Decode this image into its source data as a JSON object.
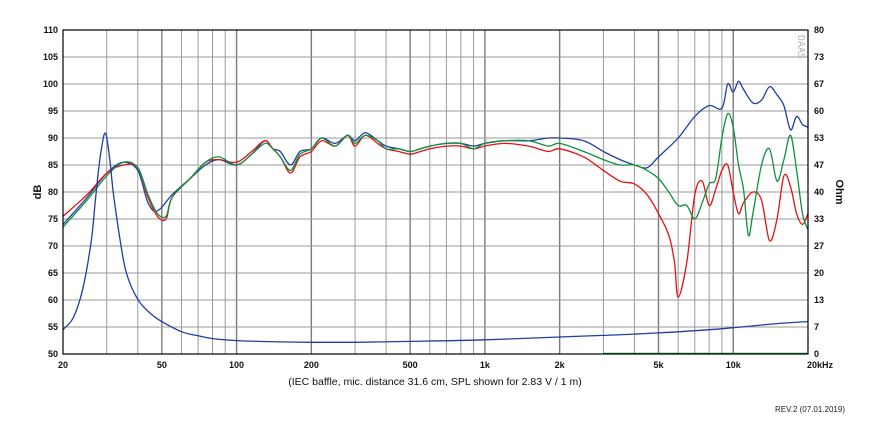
{
  "chart_data": {
    "type": "line",
    "x_scale": "log",
    "grid": true,
    "xlim": [
      20,
      20000
    ],
    "ylim": [
      50,
      110
    ],
    "y2lim": [
      0,
      80
    ],
    "ylabel": "dB",
    "y2label": "Ohm",
    "x_ticks": [
      {
        "value": 20,
        "label": "20"
      },
      {
        "value": 50,
        "label": "50"
      },
      {
        "value": 100,
        "label": "100"
      },
      {
        "value": 200,
        "label": "200"
      },
      {
        "value": 500,
        "label": "500"
      },
      {
        "value": 1000,
        "label": "1k"
      },
      {
        "value": 2000,
        "label": "2k"
      },
      {
        "value": 5000,
        "label": "5k"
      },
      {
        "value": 10000,
        "label": "10k"
      },
      {
        "value": 20000,
        "label": "20kHz"
      }
    ],
    "y_ticks": [
      {
        "value": 110,
        "label": "110"
      },
      {
        "value": 105,
        "label": "105"
      },
      {
        "value": 100,
        "label": "100"
      },
      {
        "value": 95,
        "label": "95"
      },
      {
        "value": 90,
        "label": "90"
      },
      {
        "value": 85,
        "label": "85"
      },
      {
        "value": 80,
        "label": "80"
      },
      {
        "value": 75,
        "label": "75"
      },
      {
        "value": 70,
        "label": "70"
      },
      {
        "value": 65,
        "label": "65"
      },
      {
        "value": 60,
        "label": "60"
      },
      {
        "value": 55,
        "label": "55"
      },
      {
        "value": 50,
        "label": "50"
      }
    ],
    "y2_ticks": [
      {
        "value": 80,
        "label": "80"
      },
      {
        "value": 73.3,
        "label": "73"
      },
      {
        "value": 66.7,
        "label": "67"
      },
      {
        "value": 60,
        "label": "60"
      },
      {
        "value": 53.3,
        "label": "53"
      },
      {
        "value": 46.7,
        "label": "47"
      },
      {
        "value": 40,
        "label": "40"
      },
      {
        "value": 33.3,
        "label": "33"
      },
      {
        "value": 26.7,
        "label": "27"
      },
      {
        "value": 20,
        "label": "20"
      },
      {
        "value": 13.3,
        "label": "13"
      },
      {
        "value": 6.7,
        "label": "7"
      },
      {
        "value": 0,
        "label": "0"
      }
    ],
    "caption": "(IEC baffle, mic. distance 31.6 cm, SPL shown for 2.83 V / 1 m)",
    "watermark": "DAAS",
    "revision": "REV.2 (07.01.2019)",
    "series": [
      {
        "color": "#1f3fa0",
        "axis": "left",
        "points": [
          [
            20,
            74
          ],
          [
            25,
            79
          ],
          [
            30,
            83.5
          ],
          [
            35,
            85.5
          ],
          [
            40,
            84
          ],
          [
            44,
            78
          ],
          [
            48,
            76.5
          ],
          [
            55,
            79.5
          ],
          [
            65,
            82.5
          ],
          [
            75,
            85
          ],
          [
            85,
            86
          ],
          [
            100,
            85
          ],
          [
            115,
            87
          ],
          [
            130,
            89.5
          ],
          [
            140,
            88
          ],
          [
            150,
            87.5
          ],
          [
            165,
            85
          ],
          [
            180,
            87.5
          ],
          [
            200,
            88
          ],
          [
            220,
            90
          ],
          [
            250,
            89
          ],
          [
            280,
            90.5
          ],
          [
            300,
            89.5
          ],
          [
            330,
            91
          ],
          [
            370,
            89.5
          ],
          [
            400,
            88.5
          ],
          [
            450,
            88
          ],
          [
            500,
            87.5
          ],
          [
            550,
            88
          ],
          [
            600,
            88.5
          ],
          [
            700,
            89
          ],
          [
            800,
            89
          ],
          [
            900,
            88.5
          ],
          [
            1000,
            89
          ],
          [
            1200,
            89.5
          ],
          [
            1500,
            89.5
          ],
          [
            1800,
            90
          ],
          [
            2000,
            90
          ],
          [
            2500,
            89.5
          ],
          [
            3000,
            87.5
          ],
          [
            3500,
            86
          ],
          [
            4000,
            85
          ],
          [
            4500,
            84.5
          ],
          [
            5000,
            86.5
          ],
          [
            6000,
            90
          ],
          [
            7000,
            94
          ],
          [
            8000,
            96
          ],
          [
            9000,
            95.5
          ],
          [
            9500,
            100
          ],
          [
            10000,
            98.5
          ],
          [
            10500,
            100.5
          ],
          [
            11000,
            99
          ],
          [
            12000,
            96.5
          ],
          [
            13000,
            97
          ],
          [
            14000,
            99.5
          ],
          [
            15000,
            98
          ],
          [
            16000,
            96
          ],
          [
            17000,
            91.5
          ],
          [
            18000,
            94
          ],
          [
            19000,
            92.5
          ],
          [
            20000,
            92
          ]
        ]
      },
      {
        "color": "#e81010",
        "axis": "left",
        "points": [
          [
            20,
            75.5
          ],
          [
            25,
            79.5
          ],
          [
            30,
            83.5
          ],
          [
            35,
            85
          ],
          [
            40,
            84.5
          ],
          [
            44,
            79
          ],
          [
            48,
            75.5
          ],
          [
            52,
            75
          ],
          [
            55,
            79
          ],
          [
            65,
            82.5
          ],
          [
            75,
            85.5
          ],
          [
            85,
            86
          ],
          [
            100,
            85.5
          ],
          [
            115,
            87.5
          ],
          [
            130,
            89.5
          ],
          [
            140,
            88
          ],
          [
            150,
            86.5
          ],
          [
            165,
            83.5
          ],
          [
            180,
            86.5
          ],
          [
            200,
            87.5
          ],
          [
            220,
            89.5
          ],
          [
            250,
            88.5
          ],
          [
            280,
            90.5
          ],
          [
            300,
            88.5
          ],
          [
            330,
            90.5
          ],
          [
            370,
            89
          ],
          [
            400,
            88
          ],
          [
            450,
            87.5
          ],
          [
            500,
            87
          ],
          [
            550,
            87.5
          ],
          [
            600,
            88
          ],
          [
            700,
            88.5
          ],
          [
            800,
            88.5
          ],
          [
            900,
            88
          ],
          [
            1000,
            88.5
          ],
          [
            1200,
            89
          ],
          [
            1500,
            88.5
          ],
          [
            1800,
            87.5
          ],
          [
            2000,
            88
          ],
          [
            2500,
            86.5
          ],
          [
            3000,
            84
          ],
          [
            3500,
            82
          ],
          [
            4000,
            81.5
          ],
          [
            4500,
            79.5
          ],
          [
            5000,
            76
          ],
          [
            5500,
            72
          ],
          [
            5800,
            67
          ],
          [
            6000,
            60.5
          ],
          [
            6500,
            67
          ],
          [
            7000,
            79.5
          ],
          [
            7500,
            82
          ],
          [
            8000,
            77.5
          ],
          [
            8500,
            80.5
          ],
          [
            9000,
            84
          ],
          [
            9500,
            85
          ],
          [
            10000,
            80
          ],
          [
            10500,
            76
          ],
          [
            11000,
            78
          ],
          [
            12000,
            80
          ],
          [
            13000,
            78.5
          ],
          [
            14000,
            71
          ],
          [
            15000,
            75
          ],
          [
            16000,
            83
          ],
          [
            17000,
            81
          ],
          [
            18000,
            76
          ],
          [
            19000,
            74
          ],
          [
            20000,
            76
          ]
        ]
      },
      {
        "color": "#109040",
        "axis": "left",
        "points": [
          [
            20,
            73.5
          ],
          [
            25,
            78.5
          ],
          [
            30,
            83
          ],
          [
            35,
            85.5
          ],
          [
            40,
            84.5
          ],
          [
            44,
            79.5
          ],
          [
            48,
            76
          ],
          [
            52,
            75.5
          ],
          [
            55,
            79
          ],
          [
            65,
            82.5
          ],
          [
            75,
            85.5
          ],
          [
            85,
            86.5
          ],
          [
            100,
            85
          ],
          [
            115,
            87
          ],
          [
            130,
            89
          ],
          [
            140,
            88
          ],
          [
            150,
            86.5
          ],
          [
            165,
            84
          ],
          [
            180,
            87
          ],
          [
            200,
            88
          ],
          [
            220,
            90
          ],
          [
            250,
            88.5
          ],
          [
            280,
            90.5
          ],
          [
            300,
            89
          ],
          [
            330,
            90.5
          ],
          [
            370,
            89.5
          ],
          [
            400,
            88
          ],
          [
            450,
            88
          ],
          [
            500,
            87.5
          ],
          [
            550,
            88
          ],
          [
            600,
            88.5
          ],
          [
            700,
            89
          ],
          [
            800,
            89
          ],
          [
            900,
            88
          ],
          [
            1000,
            89
          ],
          [
            1200,
            89.5
          ],
          [
            1500,
            89.5
          ],
          [
            1800,
            88.5
          ],
          [
            2000,
            89
          ],
          [
            2500,
            87.5
          ],
          [
            3000,
            86
          ],
          [
            3500,
            85
          ],
          [
            4000,
            85
          ],
          [
            4500,
            84
          ],
          [
            5000,
            82.5
          ],
          [
            5500,
            80
          ],
          [
            6000,
            77.5
          ],
          [
            6500,
            77.5
          ],
          [
            7000,
            75
          ],
          [
            7500,
            78
          ],
          [
            8000,
            81.5
          ],
          [
            8500,
            82.5
          ],
          [
            9000,
            90
          ],
          [
            9500,
            94.5
          ],
          [
            10000,
            92
          ],
          [
            10500,
            85
          ],
          [
            11000,
            80.5
          ],
          [
            11500,
            72
          ],
          [
            12000,
            76
          ],
          [
            13000,
            85
          ],
          [
            14000,
            88
          ],
          [
            15000,
            82
          ],
          [
            16000,
            86
          ],
          [
            17000,
            90.5
          ],
          [
            18000,
            84
          ],
          [
            19000,
            76
          ],
          [
            20000,
            73
          ]
        ]
      },
      {
        "color": "#1f3fa0",
        "axis": "right",
        "points": [
          [
            20,
            6
          ],
          [
            22,
            9
          ],
          [
            24,
            16
          ],
          [
            26,
            28
          ],
          [
            27,
            38
          ],
          [
            28,
            47
          ],
          [
            29,
            53
          ],
          [
            29.5,
            54.5
          ],
          [
            30,
            53.5
          ],
          [
            31,
            47
          ],
          [
            32,
            39
          ],
          [
            34,
            28
          ],
          [
            36,
            20
          ],
          [
            40,
            13.5
          ],
          [
            45,
            10
          ],
          [
            50,
            8
          ],
          [
            60,
            5.5
          ],
          [
            70,
            4.5
          ],
          [
            80,
            3.8
          ],
          [
            100,
            3.3
          ],
          [
            150,
            3
          ],
          [
            200,
            2.9
          ],
          [
            300,
            2.9
          ],
          [
            500,
            3.1
          ],
          [
            1000,
            3.5
          ],
          [
            2000,
            4.2
          ],
          [
            3000,
            4.6
          ],
          [
            5000,
            5.2
          ],
          [
            8000,
            6
          ],
          [
            10000,
            6.5
          ],
          [
            15000,
            7.5
          ],
          [
            20000,
            8
          ]
        ]
      }
    ]
  }
}
